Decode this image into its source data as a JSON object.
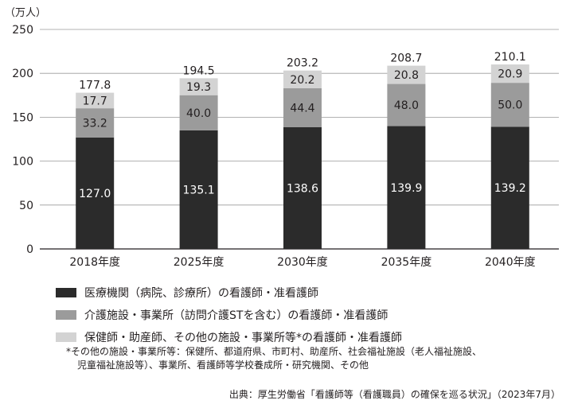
{
  "chart_data": {
    "type": "bar",
    "stacked": true,
    "unit_label": "（万人）",
    "categories": [
      "2018年度",
      "2025年度",
      "2030年度",
      "2035年度",
      "2040年度"
    ],
    "series": [
      {
        "name": "医療機関（病院、診療所）の看護師・准看護師",
        "color": "#2b2b2b",
        "values": [
          127.0,
          135.1,
          138.6,
          139.9,
          139.2
        ]
      },
      {
        "name": "介護施設・事業所（訪問介護STを含む）の看護師・准看護師",
        "color": "#9b9b9b",
        "values": [
          33.2,
          40.0,
          44.4,
          48.0,
          50.0
        ]
      },
      {
        "name": "保健師・助産師、その他の施設・事業所等*の看護師・准看護師",
        "color": "#d3d3d3",
        "values": [
          17.7,
          19.3,
          20.2,
          20.8,
          20.9
        ]
      }
    ],
    "totals": [
      177.8,
      194.5,
      203.2,
      208.7,
      210.1
    ],
    "ylim": [
      0,
      250
    ],
    "yticks": [
      0,
      50,
      100,
      150,
      200,
      250
    ],
    "grid": true
  },
  "footnote": {
    "line1": "*その他の施設・事業所等：保健所、都道府県、市町村、助産所、社会福祉施設（老人福祉施設、",
    "line2": "児童福祉施設等）、事業所、看護師等学校養成所・研究機関、その他"
  },
  "source": "出典：厚生労働省「看護師等（看護職員）の確保を巡る状況」（2023年7月）"
}
